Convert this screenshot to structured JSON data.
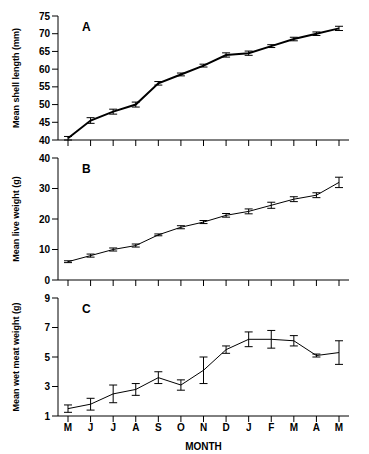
{
  "chart_data": [
    {
      "type": "line",
      "title": "A",
      "y_label": "Mean shell length (mm)",
      "categories": [
        "M",
        "J",
        "J",
        "A",
        "S",
        "O",
        "N",
        "D",
        "J",
        "F",
        "M",
        "A",
        "M"
      ],
      "values": [
        40.5,
        45.5,
        48,
        50,
        56,
        58.5,
        61,
        64,
        64.5,
        66.5,
        68.5,
        70,
        71.5
      ],
      "errors": [
        0.5,
        0.8,
        0.7,
        0.7,
        0.5,
        0.4,
        0.4,
        0.6,
        0.6,
        0.4,
        0.5,
        0.5,
        0.6
      ],
      "ylim": [
        40,
        75
      ],
      "yticks": [
        40,
        45,
        50,
        55,
        60,
        65,
        70,
        75
      ],
      "color": "#000000",
      "tick_labels": "y"
    },
    {
      "type": "line",
      "title": "B",
      "y_label": "Mean live weight (g)",
      "categories": [
        "M",
        "J",
        "J",
        "A",
        "S",
        "O",
        "N",
        "D",
        "J",
        "F",
        "M",
        "A",
        "M"
      ],
      "values": [
        6,
        8,
        10,
        11.3,
        14.8,
        17.3,
        19,
        21.2,
        22.5,
        24.5,
        26.5,
        27.8,
        32
      ],
      "errors": [
        0.3,
        0.5,
        0.5,
        0.5,
        0.3,
        0.5,
        0.5,
        0.6,
        0.8,
        1,
        0.8,
        0.8,
        1.7
      ],
      "ylim": [
        0,
        40
      ],
      "yticks": [
        0,
        10,
        20,
        30,
        40
      ],
      "color": "#000000",
      "tick_labels": "y"
    },
    {
      "type": "line",
      "title": "C",
      "y_label": "Mean wet meat weight (g)",
      "x_label": "MONTH",
      "categories": [
        "M",
        "J",
        "J",
        "A",
        "S",
        "O",
        "N",
        "D",
        "J",
        "F",
        "M",
        "A",
        "M"
      ],
      "values": [
        1.5,
        1.8,
        2.5,
        2.8,
        3.6,
        3.1,
        4.1,
        5.5,
        6.2,
        6.2,
        6.1,
        5.1,
        5.3
      ],
      "errors": [
        0.25,
        0.4,
        0.6,
        0.4,
        0.4,
        0.35,
        0.9,
        0.25,
        0.5,
        0.6,
        0.35,
        0.1,
        0.8
      ],
      "ylim": [
        1,
        9
      ],
      "yticks": [
        1,
        3,
        5,
        7,
        9
      ],
      "color": "#000000"
    }
  ]
}
